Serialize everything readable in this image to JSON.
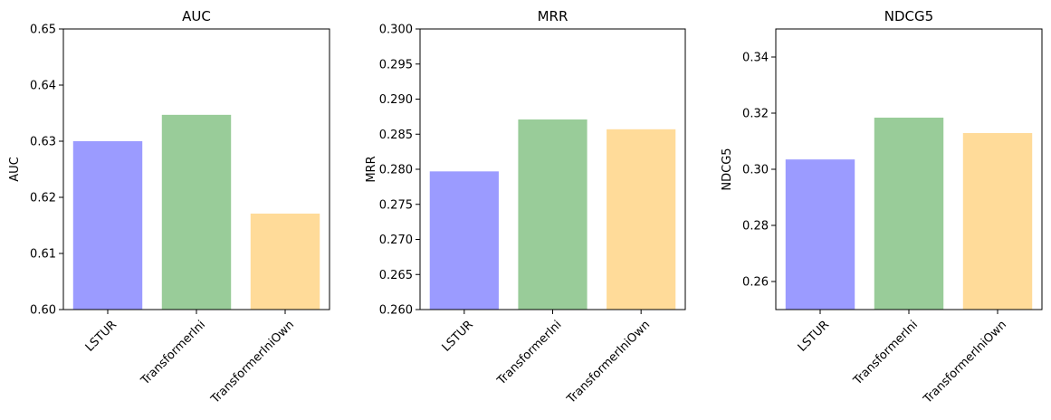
{
  "chart_data": [
    {
      "type": "bar",
      "title": "AUC",
      "xlabel": "",
      "ylabel": "AUC",
      "categories": [
        "LSTUR",
        "TransformerIni",
        "TransformerIniOwn"
      ],
      "values": [
        0.63,
        0.6347,
        0.6171
      ],
      "colors": [
        "#9b9bff",
        "#99cc99",
        "#ffdb99"
      ],
      "ylim": [
        0.6,
        0.65
      ],
      "yticks": [
        "0.60",
        "0.61",
        "0.62",
        "0.63",
        "0.64",
        "0.65"
      ],
      "grid": false
    },
    {
      "type": "bar",
      "title": "MRR",
      "xlabel": "",
      "ylabel": "MRR",
      "categories": [
        "LSTUR",
        "TransformerIni",
        "TransformerIniOwn"
      ],
      "values": [
        0.2797,
        0.2871,
        0.2857
      ],
      "colors": [
        "#9b9bff",
        "#99cc99",
        "#ffdb99"
      ],
      "ylim": [
        0.26,
        0.3
      ],
      "yticks": [
        "0.260",
        "0.265",
        "0.270",
        "0.275",
        "0.280",
        "0.285",
        "0.290",
        "0.295",
        "0.300"
      ],
      "grid": false
    },
    {
      "type": "bar",
      "title": "NDCG5",
      "xlabel": "",
      "ylabel": "NDCG5",
      "categories": [
        "LSTUR",
        "TransformerIni",
        "TransformerIniOwn"
      ],
      "values": [
        0.3035,
        0.3184,
        0.3129
      ],
      "colors": [
        "#9b9bff",
        "#99cc99",
        "#ffdb99"
      ],
      "ylim": [
        0.25,
        0.35
      ],
      "yticks": [
        "0.26",
        "0.28",
        "0.30",
        "0.32",
        "0.34"
      ],
      "grid": false
    }
  ]
}
